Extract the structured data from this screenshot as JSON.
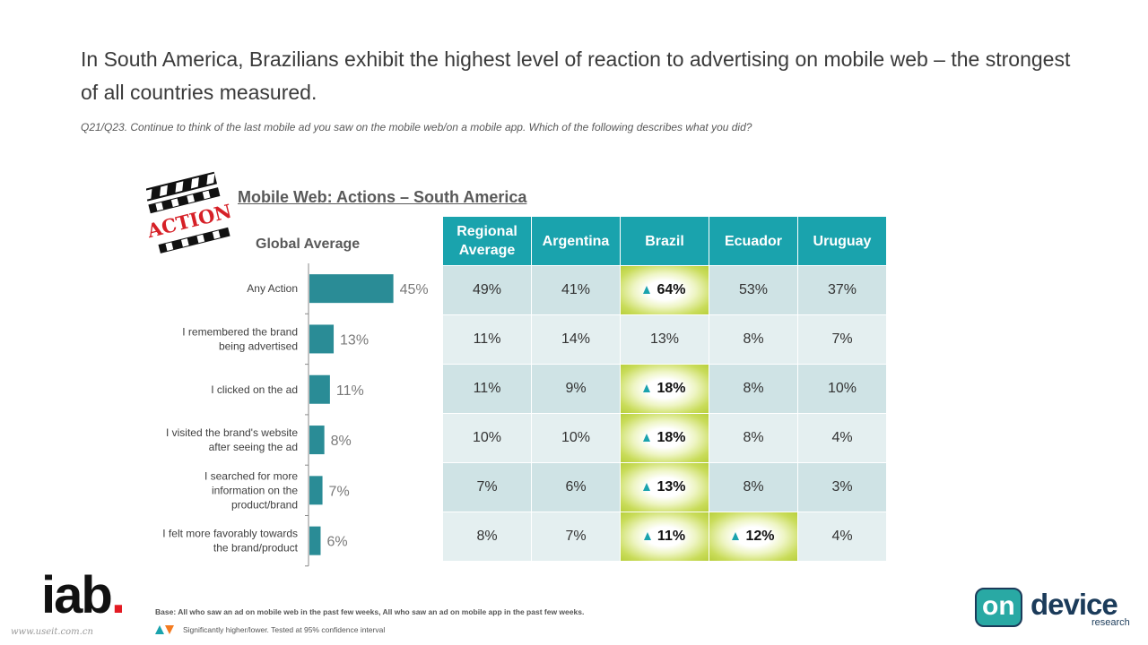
{
  "slide": {
    "title": "In South America, Brazilians exhibit the highest level of reaction to advertising on mobile web – the strongest of all countries measured.",
    "question": "Q21/Q23. Continue to think of the last mobile ad you saw on the mobile web/on a mobile app. Which of the following describes what you did?",
    "chart_title": "Mobile Web: Actions –  South America",
    "global_average_label": "Global Average",
    "clapper_text": "ACTION",
    "base_note": "Base: All who saw an ad on mobile web in the past few weeks, All who saw an ad on mobile app in the past few weeks.",
    "legend_note": "Significantly higher/lower. Tested at 95% confidence interval",
    "logo_iab": "iab",
    "logo_iab_dot": ".",
    "logo_on": "on",
    "logo_device": "device",
    "logo_research": "research",
    "watermark": "www.useit.com.cn"
  },
  "colors": {
    "bar": "#2a8c96",
    "header": "#1aa3ad",
    "row_dark": "#cfe3e5",
    "row_light": "#e4eff0",
    "significant_highlight": "#b8cf3c",
    "up_marker": "#1aa3ad",
    "down_marker": "#f47b20"
  },
  "chart_data": [
    {
      "type": "bar",
      "orientation": "horizontal",
      "title": "Global Average",
      "categories": [
        "Any Action",
        "I remembered the brand being advertised",
        "I clicked on the ad",
        "I visited the brand's website after seeing the ad",
        "I searched for more information on the product/brand",
        "I felt more favorably towards the brand/product"
      ],
      "category_lines": [
        [
          "Any Action"
        ],
        [
          "I remembered the brand",
          "being advertised"
        ],
        [
          "I clicked on the ad"
        ],
        [
          "I visited the brand's website",
          "after seeing the ad"
        ],
        [
          "I searched for more",
          "information on the",
          "product/brand"
        ],
        [
          "I felt more favorably towards",
          "the brand/product"
        ]
      ],
      "values": [
        45,
        13,
        11,
        8,
        7,
        6
      ],
      "value_labels": [
        "45%",
        "13%",
        "11%",
        "8%",
        "7%",
        "6%"
      ],
      "xlim": [
        0,
        50
      ],
      "grid": false
    },
    {
      "type": "table",
      "columns": [
        "Regional Average",
        "Argentina",
        "Brazil",
        "Ecuador",
        "Uruguay"
      ],
      "rows": [
        {
          "category": "Any Action",
          "values": [
            "49%",
            "41%",
            "64%",
            "53%",
            "37%"
          ],
          "significant": [
            false,
            false,
            true,
            false,
            false
          ]
        },
        {
          "category": "I remembered the brand being advertised",
          "values": [
            "11%",
            "14%",
            "13%",
            "8%",
            "7%"
          ],
          "significant": [
            false,
            false,
            false,
            false,
            false
          ]
        },
        {
          "category": "I clicked on the ad",
          "values": [
            "11%",
            "9%",
            "18%",
            "8%",
            "10%"
          ],
          "significant": [
            false,
            false,
            true,
            false,
            false
          ]
        },
        {
          "category": "I visited the brand's website after seeing the ad",
          "values": [
            "10%",
            "10%",
            "18%",
            "8%",
            "4%"
          ],
          "significant": [
            false,
            false,
            true,
            false,
            false
          ]
        },
        {
          "category": "I searched for more information on the product/brand",
          "values": [
            "7%",
            "6%",
            "13%",
            "8%",
            "3%"
          ],
          "significant": [
            false,
            false,
            true,
            false,
            false
          ]
        },
        {
          "category": "I felt more favorably towards the brand/product",
          "values": [
            "8%",
            "7%",
            "11%",
            "12%",
            "4%"
          ],
          "significant": [
            false,
            false,
            true,
            true,
            false
          ]
        }
      ]
    }
  ]
}
